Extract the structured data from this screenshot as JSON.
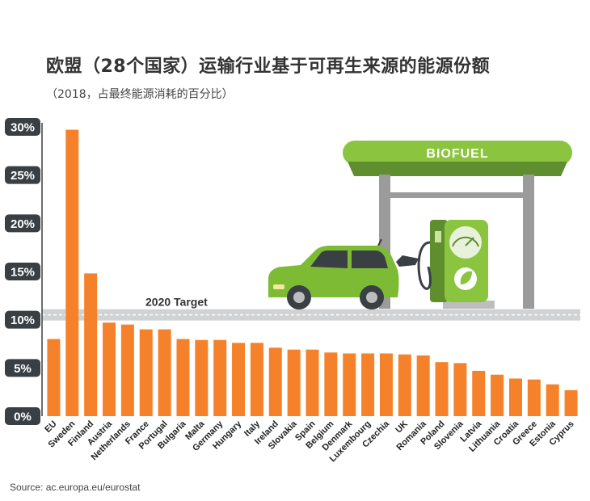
{
  "title": "欧盟（28个国家）运输行业基于可再生来源的能源份额",
  "subtitle": "（2018，占最终能源消耗的百分比）",
  "source": "Source: ac.europa.eu/eurostat",
  "illustration": {
    "sign_text": "BIOFUEL"
  },
  "colors": {
    "bar": "#F5822A",
    "tick_badge": "#3A3F44",
    "target_band": "#D0D2D3",
    "sign_green": "#8BC53F",
    "sign_dark": "#5E8E2E"
  },
  "chart_data": {
    "type": "bar",
    "title": "欧盟（28个国家）运输行业基于可再生来源的能源份额",
    "subtitle": "（2018，占最终能源消耗的百分比）",
    "categories": [
      "EU",
      "Sweden",
      "Finland",
      "Austria",
      "Netherlands",
      "France",
      "Portugal",
      "Bulgaria",
      "Malta",
      "Germany",
      "Hungary",
      "Italy",
      "Ireland",
      "Slovakia",
      "Spain",
      "Belgium",
      "Denmark",
      "Luxembourg",
      "Czechia",
      "UK",
      "Romania",
      "Poland",
      "Slovenia",
      "Latvia",
      "Lithuania",
      "Croatia",
      "Greece",
      "Estonia",
      "Cyprus"
    ],
    "values": [
      8.0,
      29.7,
      14.8,
      9.7,
      9.5,
      9.0,
      9.0,
      8.0,
      7.9,
      7.9,
      7.6,
      7.6,
      7.1,
      6.9,
      6.9,
      6.6,
      6.5,
      6.5,
      6.5,
      6.4,
      6.3,
      5.6,
      5.5,
      4.7,
      4.3,
      3.9,
      3.8,
      3.3,
      2.7
    ],
    "ylim": [
      0,
      30
    ],
    "yticks": [
      "0%",
      "5%",
      "10%",
      "15%",
      "20%",
      "25%",
      "30%"
    ],
    "ytick_values": [
      0,
      5,
      10,
      15,
      20,
      25,
      30
    ],
    "xlabel": "",
    "ylabel": "",
    "target": {
      "label": "2020 Target",
      "value": 10
    },
    "grid": false,
    "legend": "none"
  }
}
